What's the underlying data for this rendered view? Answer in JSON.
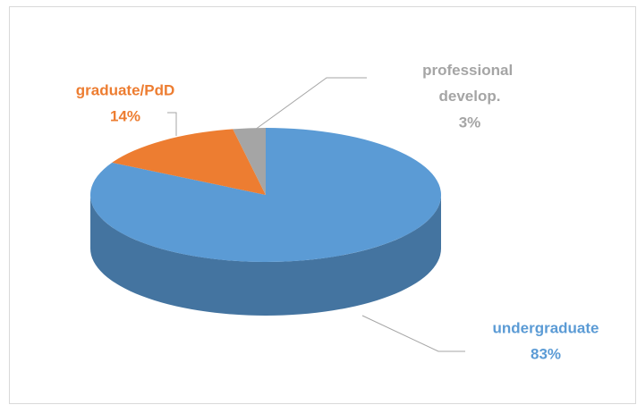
{
  "chart_data": {
    "type": "pie",
    "categories": [
      "undergraduate",
      "graduate/PdD",
      "professional develop."
    ],
    "values": [
      83,
      14,
      3
    ],
    "value_labels": [
      "83%",
      "14%",
      "3%"
    ],
    "colors": [
      "#5b9bd5",
      "#ed7d31",
      "#a5a5a5"
    ]
  }
}
